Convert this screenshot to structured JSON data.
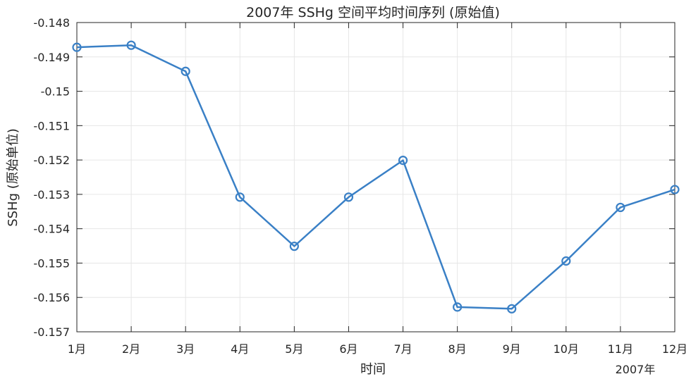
{
  "chart_data": {
    "type": "line",
    "title": "2007年 SSHg 空间平均时间序列 (原始值)",
    "xlabel": "时间",
    "ylabel": "SSHg (原始单位)",
    "secondary_xlabel": "2007年",
    "categories": [
      "1月",
      "2月",
      "3月",
      "4月",
      "5月",
      "6月",
      "7月",
      "8月",
      "9月",
      "10月",
      "11月",
      "12月"
    ],
    "yticks": [
      "-0.148",
      "-0.149",
      "-0.15",
      "-0.151",
      "-0.152",
      "-0.153",
      "-0.154",
      "-0.155",
      "-0.156",
      "-0.157"
    ],
    "ylim": [
      -0.157,
      -0.148
    ],
    "grid": true,
    "series": [
      {
        "color": "#3a80c6",
        "marker": "circle",
        "values": [
          -0.14872,
          -0.14866,
          -0.14942,
          -0.15308,
          -0.15451,
          -0.15308,
          -0.15201,
          -0.15628,
          -0.15633,
          -0.15494,
          -0.15338,
          -0.15286
        ]
      }
    ]
  }
}
